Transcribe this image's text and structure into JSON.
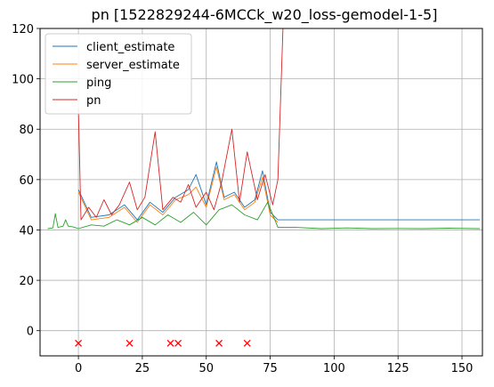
{
  "chart_data": {
    "type": "line",
    "title": "pn [1522829244-6MCCk_w20_loss-gemodel-1-5]",
    "xlabel": "",
    "ylabel": "",
    "xlim": [
      -15,
      158
    ],
    "ylim": [
      -10,
      120
    ],
    "xticks": [
      0,
      25,
      50,
      75,
      100,
      125,
      150
    ],
    "yticks": [
      0,
      20,
      40,
      60,
      80,
      100,
      120
    ],
    "grid": true,
    "legend_position": "top-left",
    "series": [
      {
        "name": "client_estimate",
        "color": "#1f77b4",
        "points": [
          [
            0,
            56
          ],
          [
            5,
            45
          ],
          [
            12,
            46
          ],
          [
            18,
            50
          ],
          [
            23,
            44
          ],
          [
            28,
            51
          ],
          [
            33,
            47
          ],
          [
            38,
            53
          ],
          [
            43,
            56
          ],
          [
            46,
            62
          ],
          [
            50,
            50
          ],
          [
            54,
            67
          ],
          [
            57,
            53
          ],
          [
            61,
            55
          ],
          [
            65,
            49
          ],
          [
            69,
            52
          ],
          [
            72,
            63.5
          ],
          [
            75,
            47
          ],
          [
            78,
            44
          ],
          [
            80,
            44
          ],
          [
            82,
            44
          ],
          [
            85,
            44
          ],
          [
            88,
            44
          ],
          [
            92,
            44
          ],
          [
            96,
            44
          ],
          [
            100,
            44
          ],
          [
            106,
            44
          ],
          [
            111,
            44
          ],
          [
            116,
            44
          ],
          [
            122,
            44
          ],
          [
            128,
            44
          ],
          [
            134,
            44
          ],
          [
            140,
            44
          ],
          [
            146,
            44
          ],
          [
            152,
            44
          ],
          [
            157,
            44
          ]
        ]
      },
      {
        "name": "server_estimate",
        "color": "#ff7f0e",
        "points": [
          [
            0,
            55
          ],
          [
            5,
            44
          ],
          [
            12,
            45
          ],
          [
            18,
            49
          ],
          [
            23,
            43
          ],
          [
            28,
            50
          ],
          [
            33,
            46
          ],
          [
            38,
            52
          ],
          [
            43,
            54
          ],
          [
            46,
            57
          ],
          [
            50,
            49
          ],
          [
            54,
            65
          ],
          [
            57,
            52
          ],
          [
            61,
            54
          ],
          [
            65,
            48
          ],
          [
            69,
            51
          ],
          [
            72,
            61
          ],
          [
            75,
            46
          ],
          [
            78,
            43
          ]
        ]
      },
      {
        "name": "ping",
        "color": "#2ca02c",
        "points": [
          [
            -12,
            40.5
          ],
          [
            -10,
            40.8
          ],
          [
            -9,
            46.5
          ],
          [
            -8,
            41
          ],
          [
            -6,
            41.5
          ],
          [
            -5,
            44
          ],
          [
            -4,
            41.5
          ],
          [
            -2,
            41.2
          ],
          [
            0,
            40.5
          ],
          [
            5,
            42
          ],
          [
            10,
            41.5
          ],
          [
            15,
            44
          ],
          [
            20,
            42
          ],
          [
            25,
            45
          ],
          [
            30,
            42
          ],
          [
            35,
            46
          ],
          [
            40,
            43
          ],
          [
            45,
            47
          ],
          [
            50,
            42
          ],
          [
            55,
            48
          ],
          [
            60,
            50
          ],
          [
            65,
            46
          ],
          [
            70,
            44
          ],
          [
            74,
            51
          ],
          [
            78,
            41
          ],
          [
            85,
            41
          ],
          [
            95,
            40.5
          ],
          [
            105,
            40.8
          ],
          [
            115,
            40.5
          ],
          [
            125,
            40.6
          ],
          [
            135,
            40.5
          ],
          [
            145,
            40.7
          ],
          [
            157,
            40.5
          ]
        ]
      },
      {
        "name": "pn",
        "color": "#d62728",
        "points": [
          [
            0,
            88
          ],
          [
            1,
            44
          ],
          [
            4,
            49
          ],
          [
            7,
            45
          ],
          [
            10,
            52
          ],
          [
            13,
            46
          ],
          [
            16,
            50
          ],
          [
            20,
            59
          ],
          [
            23,
            48
          ],
          [
            26,
            53
          ],
          [
            30,
            79
          ],
          [
            33,
            48
          ],
          [
            37,
            53
          ],
          [
            40,
            51
          ],
          [
            43,
            58
          ],
          [
            46,
            49
          ],
          [
            50,
            55
          ],
          [
            53,
            48
          ],
          [
            56,
            59
          ],
          [
            60,
            80
          ],
          [
            63,
            51
          ],
          [
            66,
            71
          ],
          [
            70,
            52
          ],
          [
            73,
            62
          ],
          [
            76,
            50
          ],
          [
            78,
            60
          ],
          [
            80,
            120
          ],
          [
            84,
            120
          ],
          [
            88,
            120
          ],
          [
            92,
            120
          ],
          [
            96,
            120
          ],
          [
            100,
            120
          ],
          [
            104,
            120
          ],
          [
            108,
            120
          ],
          [
            112,
            120
          ],
          [
            116,
            120
          ],
          [
            120,
            120
          ],
          [
            124,
            120
          ],
          [
            128,
            120
          ],
          [
            132,
            120
          ],
          [
            136,
            120
          ],
          [
            140,
            120
          ],
          [
            144,
            120
          ],
          [
            148,
            120
          ],
          [
            152,
            120
          ],
          [
            157,
            120
          ]
        ]
      }
    ],
    "loss_markers": {
      "marker": "x",
      "color": "#ff0000",
      "x": [
        0,
        20,
        36,
        39,
        55,
        66
      ],
      "y": [
        -5,
        -5,
        -5,
        -5,
        -5,
        -5
      ]
    }
  }
}
